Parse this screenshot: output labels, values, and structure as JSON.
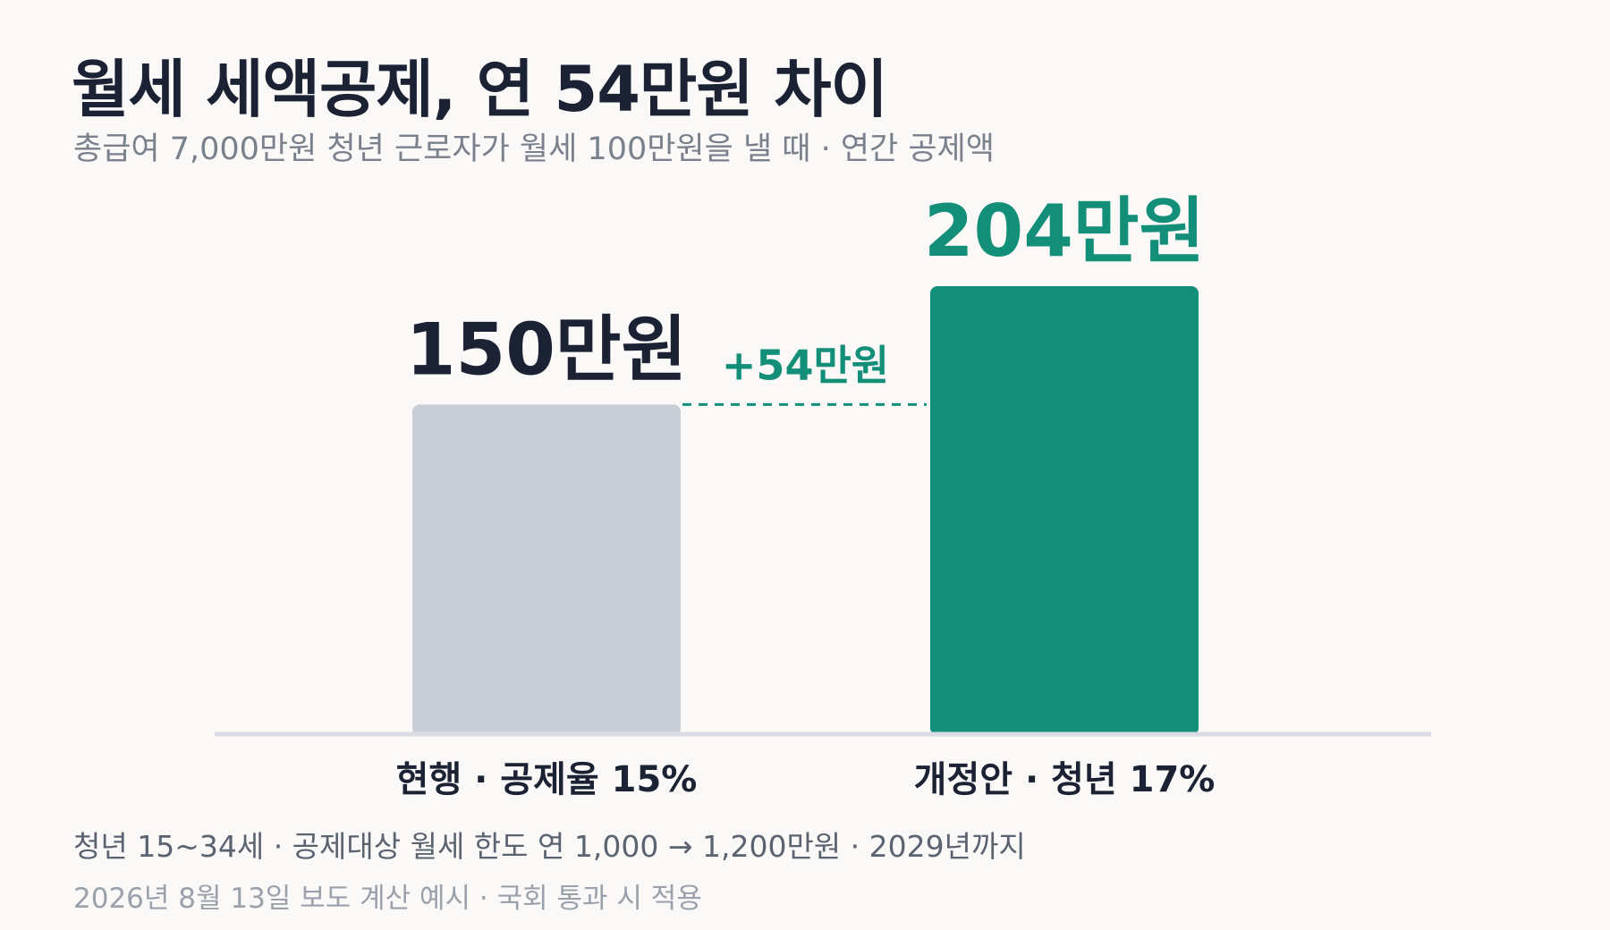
{
  "header": {
    "title": "월세 세액공제, 연 54만원 차이",
    "subtitle": "총급여 7,000만원 청년 근로자가 월세 100만원을 낼 때 · 연간 공제액"
  },
  "chart_data": {
    "type": "bar",
    "categories": [
      "현행 · 공제율 15%",
      "개정안 · 청년 17%"
    ],
    "values": [
      150,
      204
    ],
    "unit": "만원",
    "value_labels": [
      "150만원",
      "204만원"
    ],
    "difference_label": "+54만원",
    "ylim": [
      0,
      220
    ],
    "colors": [
      "#c9ced6",
      "#138f79"
    ],
    "value_label_colors": [
      "#1b2233",
      "#138f79"
    ],
    "accent_color": "#138f79",
    "baseline_color": "#d9dce2",
    "grid": false
  },
  "footer": {
    "note": "청년 15~34세 · 공제대상 월세 한도 연 1,000 → 1,200만원 · 2029년까지",
    "source": "2026년 8월 13일 보도 계산 예시 · 국회 통과 시 적용"
  }
}
